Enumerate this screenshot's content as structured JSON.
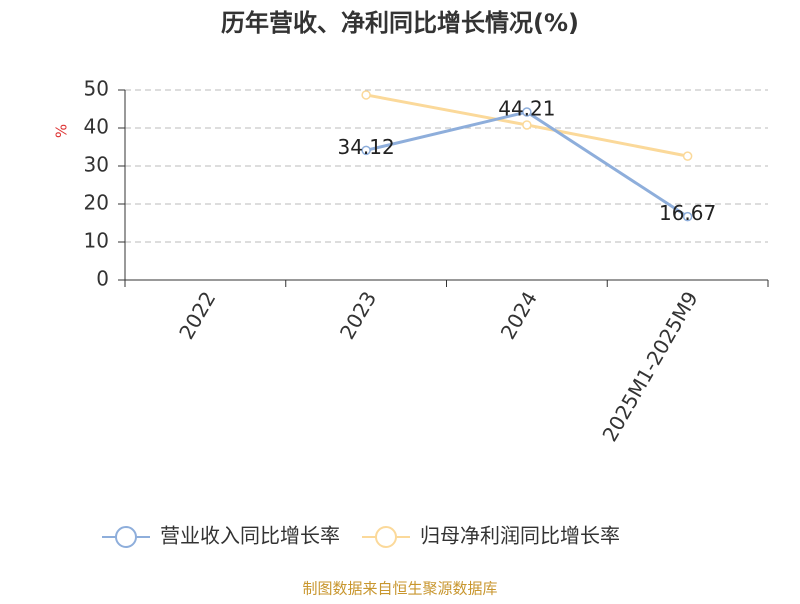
{
  "chart_data": {
    "type": "line",
    "title": "历年营收、净利同比增长情况(%)",
    "y_label": "%",
    "categories": [
      "2022",
      "2023",
      "2024",
      "2025M1-2025M9"
    ],
    "series": [
      {
        "name": "营业收入同比增长率",
        "color": "#8eaedb",
        "values": [
          null,
          34.12,
          44.21,
          16.67
        ],
        "show_labels": true
      },
      {
        "name": "归母净利润同比增长率",
        "color": "#fbd99a",
        "values": [
          null,
          48.7,
          40.8,
          32.6
        ],
        "show_labels": false
      }
    ],
    "ylim": [
      0,
      50
    ],
    "yticks": [
      0,
      10,
      20,
      30,
      40,
      50
    ],
    "grid": true,
    "legend": "bottom",
    "source": "制图数据来自恒生聚源数据库"
  }
}
